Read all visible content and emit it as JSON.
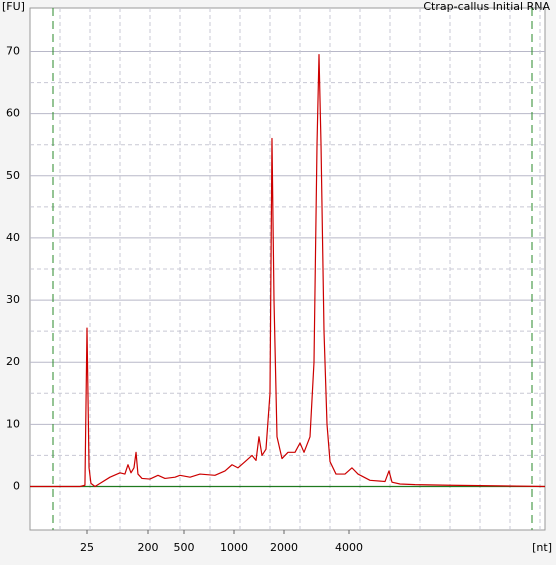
{
  "chart_data": {
    "type": "line",
    "title": "Ctrap-callus Initial RNA",
    "y_label": "[FU]",
    "x_label": "[nt]",
    "x": [
      4,
      20.0,
      23.4,
      25,
      26.8,
      28.6,
      32.8,
      39,
      54.7,
      77,
      91,
      101,
      112,
      124,
      133,
      142,
      163,
      210,
      258,
      308,
      398,
      451,
      544,
      624,
      768,
      883,
      973,
      1057,
      1165,
      1283,
      1357,
      1414,
      1474,
      1558,
      1647,
      1693,
      1741,
      1815,
      1945,
      2087,
      2249,
      2372,
      2476,
      2639,
      2754,
      2844,
      2905,
      2968,
      3064,
      3164,
      3267,
      3482,
      3832,
      4129,
      4401,
      4998,
      5861,
      6113,
      6311,
      6873,
      8055,
      11670,
      19850,
      32000
    ],
    "values": [
      0,
      0,
      0.2,
      25.5,
      3,
      0.5,
      0,
      0.5,
      1.5,
      2.2,
      2,
      3.5,
      2.2,
      3,
      5.5,
      2,
      1.3,
      1.2,
      1.8,
      1.3,
      1.5,
      1.8,
      1.5,
      2,
      1.8,
      2.5,
      3.5,
      3,
      4,
      5,
      4.2,
      8,
      5,
      6,
      15,
      56,
      30,
      8,
      4.5,
      5.5,
      5.5,
      7,
      5.5,
      8,
      20,
      55,
      69.5,
      55,
      25,
      10,
      4,
      2,
      2,
      3,
      2,
      1,
      0.8,
      2.5,
      0.7,
      0.4,
      0.3,
      0.2,
      0.1,
      0
    ],
    "color": "#cc0000",
    "xscale": "nonlinear",
    "xlim": [
      4,
      32000
    ],
    "xticks": [
      25,
      200,
      500,
      1000,
      2000,
      4000
    ],
    "ylim": [
      -7,
      77
    ],
    "yticks": [
      0,
      10,
      20,
      30,
      40,
      50,
      60,
      70
    ],
    "grid": true
  }
}
